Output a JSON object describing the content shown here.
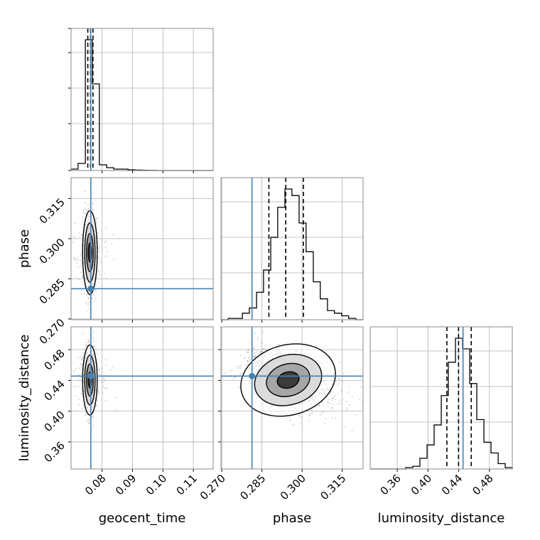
{
  "chart_data": {
    "type": "corner",
    "title": "",
    "parameters": [
      "geocent_time",
      "phase",
      "luminosity_distance"
    ],
    "axis_labels": {
      "geocent_time": "geocent_time",
      "phase": "phase",
      "luminosity_distance": "luminosity_distance"
    },
    "ranges": {
      "geocent_time": [
        0.0698,
        0.1165
      ],
      "phase": [
        0.2697,
        0.3228
      ],
      "luminosity_distance": [
        0.3248,
        0.5097
      ]
    },
    "ticks": {
      "geocent_time": [
        "0.08",
        "0.09",
        "0.10",
        "0.11"
      ],
      "phase": [
        "0.270",
        "0.285",
        "0.300",
        "0.315"
      ],
      "luminosity_distance": [
        "0.36",
        "0.40",
        "0.44",
        "0.48"
      ]
    },
    "truths": {
      "geocent_time": 0.0763,
      "phase": 0.2813,
      "luminosity_distance": 0.4456
    },
    "quantile_lines": {
      "geocent_time": [
        0.0753,
        0.0762,
        0.077
      ],
      "phase": [
        0.2876,
        0.2939,
        0.3005
      ],
      "luminosity_distance": [
        0.4246,
        0.4398,
        0.4563
      ]
    },
    "histograms": {
      "geocent_time": {
        "bin_edges": [
          0.0698,
          0.0721,
          0.0745,
          0.0768,
          0.0791,
          0.0815,
          0.0838,
          0.0861,
          0.0885,
          0.0908,
          0.0931,
          0.0955,
          0.0978,
          0.1001,
          0.1025,
          0.1048,
          0.1072,
          0.1095,
          0.1118,
          0.1142,
          0.1165
        ],
        "counts": [
          1,
          5,
          92,
          61,
          4,
          2,
          1,
          1,
          0.5,
          0.3,
          0.2,
          0.1,
          0,
          0,
          0,
          0,
          0,
          0,
          0,
          0
        ]
      },
      "phase": {
        "bin_edges": [
          0.2697,
          0.2724,
          0.275,
          0.2777,
          0.2803,
          0.283,
          0.2856,
          0.2883,
          0.2909,
          0.2936,
          0.2962,
          0.2989,
          0.3015,
          0.3042,
          0.3068,
          0.3095,
          0.3121,
          0.3148,
          0.3174,
          0.3201,
          0.3228
        ],
        "counts": [
          0,
          1,
          1,
          5,
          9,
          21,
          38,
          63,
          86,
          100,
          95,
          74,
          52,
          29,
          16,
          7,
          5,
          3,
          1,
          0
        ]
      },
      "luminosity_distance": {
        "bin_edges": [
          0.3248,
          0.334,
          0.3433,
          0.3525,
          0.3618,
          0.371,
          0.3803,
          0.3895,
          0.3988,
          0.408,
          0.4173,
          0.4265,
          0.4358,
          0.445,
          0.4543,
          0.4635,
          0.4728,
          0.482,
          0.4913,
          0.5005,
          0.5097
        ],
        "counts": [
          0,
          0,
          0,
          0,
          0,
          1,
          2,
          8,
          18,
          33,
          55,
          80,
          98,
          90,
          64,
          37,
          20,
          12,
          4,
          1
        ]
      }
    },
    "samples_2d": {
      "geocent_time_vs_phase": {
        "center": [
          0.076,
          0.2948
        ],
        "spread": [
          0.001,
          0.0065
        ]
      },
      "geocent_time_vs_luminosity_distance": {
        "center": [
          0.076,
          0.4405
        ],
        "spread": [
          0.001,
          0.019
        ]
      },
      "phase_vs_luminosity_distance": {
        "center": [
          0.2948,
          0.4405
        ],
        "spread": [
          0.0075,
          0.019
        ],
        "correlation": -0.45
      }
    },
    "grid": true,
    "colors": {
      "truth": "#4682b4",
      "histogram": "#000000",
      "points": "#888888",
      "contour": "#000000"
    }
  }
}
